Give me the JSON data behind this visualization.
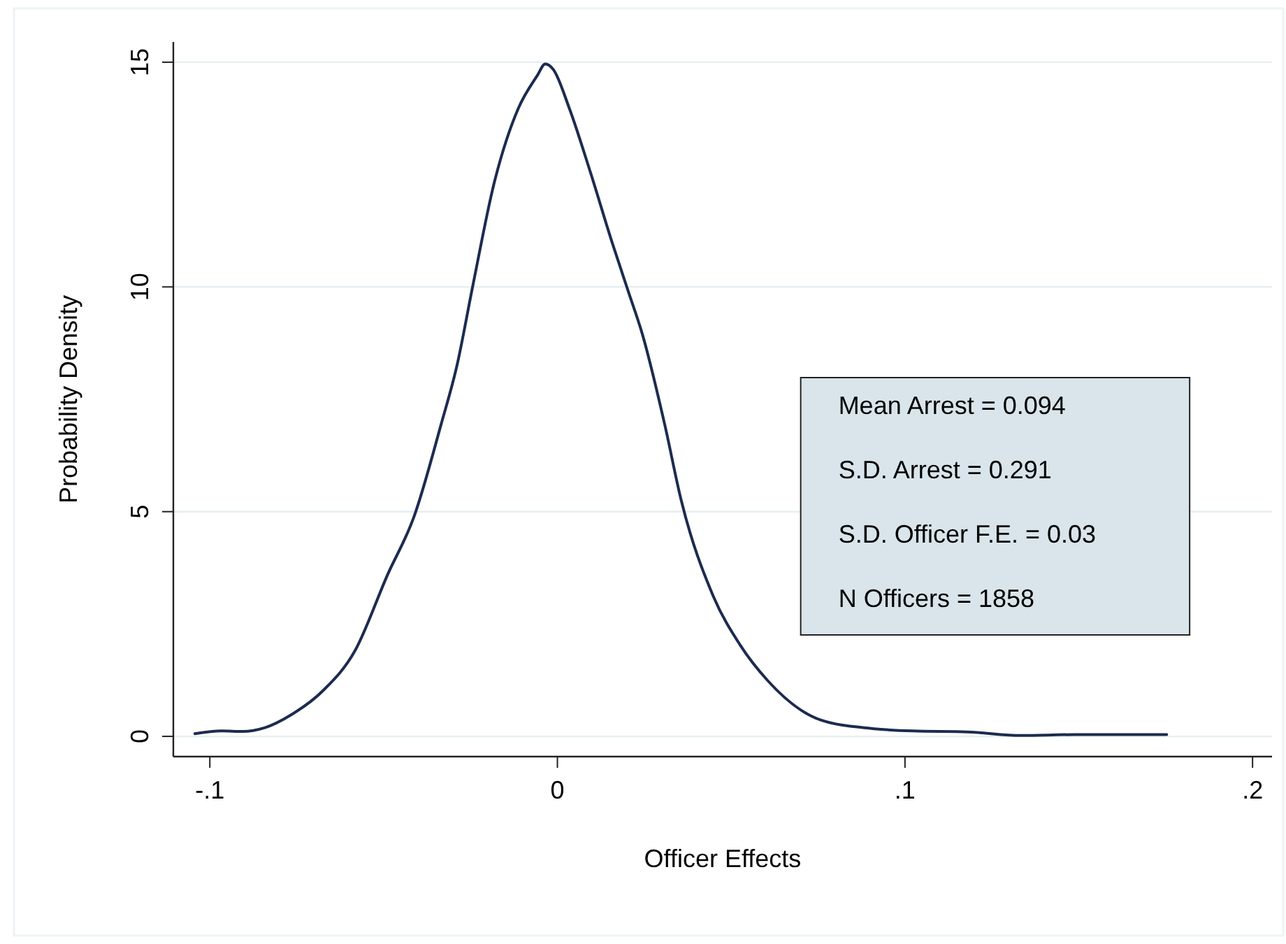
{
  "chart_data": {
    "type": "line",
    "xlabel": "Officer Effects",
    "ylabel": "Probability Density",
    "series": [
      {
        "color": "#1c2b4f",
        "x": [
          -0.1043,
          -0.0966,
          -0.0905,
          -0.0843,
          -0.0766,
          -0.0674,
          -0.0582,
          -0.0489,
          -0.0412,
          -0.0335,
          -0.0289,
          -0.0243,
          -0.0182,
          -0.0112,
          -0.0058,
          -0.0035,
          -0.0012,
          0.0034,
          0.0095,
          0.0157,
          0.0203,
          0.0244,
          0.0309,
          0.0356,
          0.0449,
          0.0526,
          0.0604,
          0.0759,
          0.0899,
          0.1023,
          0.1179,
          0.1334,
          0.1489,
          0.1753
        ],
        "values": [
          0.06,
          0.12,
          0.11,
          0.19,
          0.48,
          1.02,
          1.91,
          3.59,
          4.9,
          6.93,
          8.25,
          10.04,
          12.31,
          13.98,
          14.7,
          14.96,
          14.84,
          13.98,
          12.55,
          11.0,
          9.92,
          8.96,
          6.93,
          5.26,
          3.11,
          2.03,
          1.25,
          0.36,
          0.18,
          0.12,
          0.1,
          0.02,
          0.04,
          0.04
        ]
      }
    ],
    "xlim": [
      -0.1105,
      0.2056
    ],
    "xticks": [
      {
        "value": -0.1,
        "label": "-.1"
      },
      0,
      {
        "value": 0.1,
        "label": ".1"
      },
      {
        "value": 0.2,
        "label": ".2"
      }
    ],
    "ylim": [
      -0.45,
      15.45
    ],
    "yticks": [
      0,
      5,
      10,
      15
    ],
    "grid": "y",
    "marker": "none",
    "line_style": "solid",
    "annotations": [
      "Mean Arrest = 0.094",
      "S.D. Arrest = 0.291",
      "S.D. Officer F.E. = 0.03",
      "N Officers = 1858"
    ]
  }
}
